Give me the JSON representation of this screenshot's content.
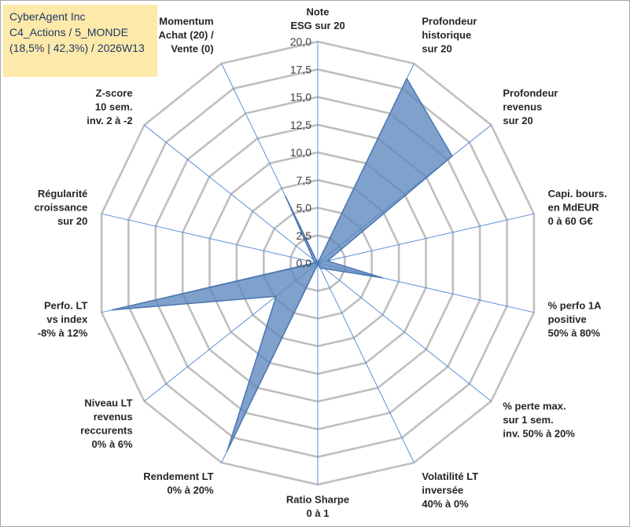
{
  "info": {
    "company": "CyberAgent Inc",
    "portfolio": "C4_Actions / 5_MONDE",
    "stats": "(18,5% | 42,3%) / 2026W13"
  },
  "chart_data": {
    "type": "radar",
    "title": "",
    "series_name": "CyberAgent Inc",
    "series_color": "#5b86bd",
    "series_fill_opacity": 0.78,
    "grid_color": "#bfbfbf",
    "axis_color": "#5b8fd6",
    "rmax": 20,
    "ticks": [
      "0,0",
      "2,5",
      "5,0",
      "7,5",
      "10,0",
      "12,5",
      "15,0",
      "17,5",
      "20,0"
    ],
    "categories": [
      [
        "Note",
        "ESG sur 20"
      ],
      [
        "Profondeur",
        "historique",
        "sur 20"
      ],
      [
        "Profondeur",
        "revenus",
        "sur 20"
      ],
      [
        "Capi. bours.",
        "en MdEUR",
        "0 à 60 G€"
      ],
      [
        "% perfo 1A",
        "positive",
        "50% à 80%"
      ],
      [
        "% perte max.",
        "sur 1 sem.",
        "inv. 50% à 20%"
      ],
      [
        "Volatilité LT",
        "inversée",
        "40% à 0%"
      ],
      [
        "Ratio Sharpe",
        "0 à 1"
      ],
      [
        "Rendement LT",
        "0% à 20%"
      ],
      [
        "Niveau LT",
        "revenus",
        "reccurents",
        "0% à 6%"
      ],
      [
        "Perfo. LT",
        "vs index",
        "-8% à 12%"
      ],
      [
        "Régularité",
        "croissance",
        "sur 20"
      ],
      [
        "Z-score",
        "10 sem.",
        "inv. 2 à -2"
      ],
      [
        "Momentum",
        "Achat (20) /",
        "Vente (0)"
      ]
    ],
    "values": [
      0,
      18.5,
      15.5,
      0.9,
      6.0,
      0.8,
      0.5,
      0.1,
      18.8,
      4.8,
      19.0,
      0.2,
      0.5,
      6.7
    ]
  }
}
